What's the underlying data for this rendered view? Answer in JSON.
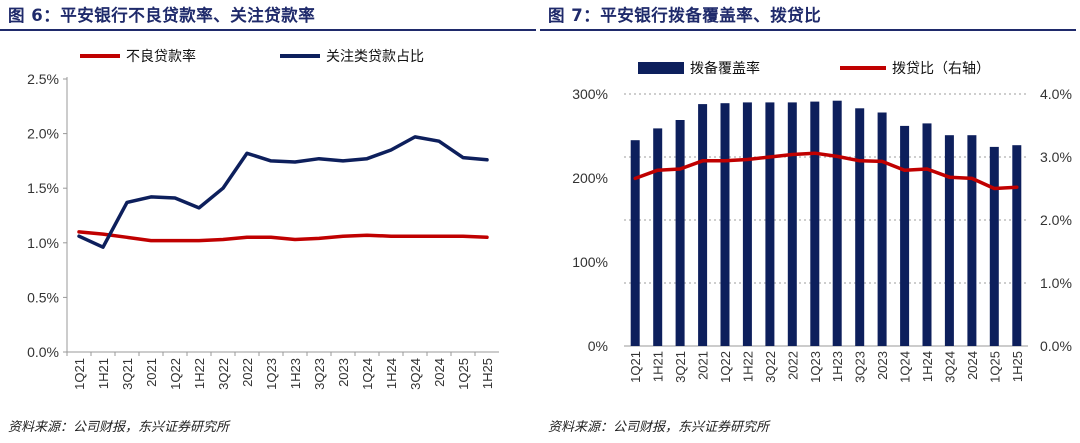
{
  "left": {
    "title": "图 6：平安银行不良贷款率、关注贷款率",
    "source": "资料来源：公司财报，东兴证券研究所"
  },
  "right": {
    "title": "图 7：平安银行拨备覆盖率、拨贷比",
    "source": "资料来源：公司财报，东兴证券研究所"
  },
  "chart_data": [
    {
      "type": "line",
      "categories": [
        "1Q21",
        "1H21",
        "3Q21",
        "2021",
        "1Q22",
        "1H22",
        "3Q22",
        "2022",
        "1Q23",
        "1H23",
        "3Q23",
        "2023",
        "1Q24",
        "1H24",
        "3Q24",
        "2024",
        "1Q25",
        "1H25"
      ],
      "yticks": [
        "0.0%",
        "0.5%",
        "1.0%",
        "1.5%",
        "2.0%",
        "2.5%"
      ],
      "ylim": [
        0,
        2.5
      ],
      "legend_position": "top",
      "series": [
        {
          "name": "不良贷款率",
          "color": "#c00000",
          "values": [
            1.1,
            1.08,
            1.05,
            1.02,
            1.02,
            1.02,
            1.03,
            1.05,
            1.05,
            1.03,
            1.04,
            1.06,
            1.07,
            1.06,
            1.06,
            1.06,
            1.06,
            1.05
          ]
        },
        {
          "name": "关注类贷款占比",
          "color": "#0d1f5c",
          "values": [
            1.06,
            0.96,
            1.37,
            1.42,
            1.41,
            1.32,
            1.5,
            1.82,
            1.75,
            1.74,
            1.77,
            1.75,
            1.77,
            1.85,
            1.97,
            1.93,
            1.78,
            1.76
          ]
        }
      ]
    },
    {
      "type": "bar",
      "categories": [
        "1Q21",
        "1H21",
        "3Q21",
        "2021",
        "1Q22",
        "1H22",
        "3Q22",
        "2022",
        "1Q23",
        "1H23",
        "3Q23",
        "2023",
        "1Q24",
        "1H24",
        "3Q24",
        "2024",
        "1Q25",
        "1H25"
      ],
      "yticks_left": [
        "0%",
        "100%",
        "200%",
        "300%"
      ],
      "yticks_right": [
        "0.0%",
        "1.0%",
        "2.0%",
        "3.0%",
        "4.0%"
      ],
      "ylim_left": [
        0,
        300
      ],
      "ylim_right": [
        0,
        4.0
      ],
      "grid": true,
      "legend_position": "top",
      "series": [
        {
          "name": "拨备覆盖率",
          "kind": "bar",
          "axis": "left",
          "color": "#0d1f5c",
          "values": [
            245,
            259,
            269,
            288,
            289,
            290,
            290,
            290,
            291,
            292,
            283,
            278,
            262,
            265,
            251,
            251,
            237,
            239
          ]
        },
        {
          "name": "拨贷比（右轴）",
          "kind": "line",
          "axis": "right",
          "color": "#c00000",
          "values": [
            2.66,
            2.79,
            2.81,
            2.94,
            2.94,
            2.96,
            3.0,
            3.04,
            3.06,
            3.01,
            2.94,
            2.93,
            2.79,
            2.81,
            2.68,
            2.66,
            2.5,
            2.52
          ]
        }
      ]
    }
  ]
}
